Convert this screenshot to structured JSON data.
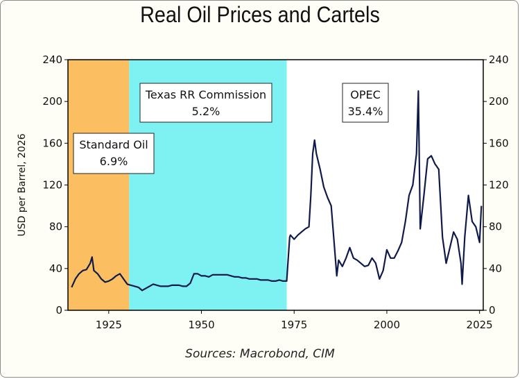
{
  "chart_data": {
    "type": "line",
    "title": "Real Oil Prices and Cartels",
    "ylabel": "USD per Barrel, 2026",
    "source": "Sources: Macrobond, CIM",
    "xlim": [
      1914,
      2026
    ],
    "ylim": [
      0,
      240
    ],
    "x_ticks": [
      "1925",
      "1950",
      "1975",
      "2000",
      "2025"
    ],
    "x_tick_values": [
      1925,
      1950,
      1975,
      2000,
      2025
    ],
    "y_ticks_left": [
      "0",
      "40",
      "80",
      "120",
      "160",
      "200",
      "240"
    ],
    "y_ticks_right": [
      "0",
      "40",
      "80",
      "120",
      "160",
      "200",
      "240"
    ],
    "y_tick_values": [
      0,
      40,
      80,
      120,
      160,
      200,
      240
    ],
    "shaded_periods": [
      {
        "from": 1914,
        "to": 1930.5,
        "color": "#fbbf62"
      },
      {
        "from": 1930.5,
        "to": 1973,
        "color": "#7ef1f3"
      }
    ],
    "annotations": [
      {
        "line1": "Standard Oil",
        "line2": "6.9%"
      },
      {
        "line1": "Texas RR Commission",
        "line2": "5.2%"
      },
      {
        "line1": "OPEC",
        "line2": "35.4%"
      }
    ],
    "series": [
      {
        "color": "#0f1a4a",
        "points": [
          [
            1915,
            22
          ],
          [
            1916,
            30
          ],
          [
            1917,
            35
          ],
          [
            1918,
            38
          ],
          [
            1919,
            39
          ],
          [
            1920,
            45
          ],
          [
            1920.5,
            51
          ],
          [
            1921,
            38
          ],
          [
            1922,
            35
          ],
          [
            1923,
            30
          ],
          [
            1924,
            27
          ],
          [
            1925,
            28
          ],
          [
            1926,
            30
          ],
          [
            1927,
            33
          ],
          [
            1928,
            35
          ],
          [
            1929,
            30
          ],
          [
            1930,
            25
          ],
          [
            1931,
            24
          ],
          [
            1932,
            23
          ],
          [
            1933,
            22
          ],
          [
            1934,
            19
          ],
          [
            1935,
            21
          ],
          [
            1936,
            23
          ],
          [
            1937,
            25
          ],
          [
            1938,
            24
          ],
          [
            1939,
            23
          ],
          [
            1940,
            23
          ],
          [
            1941,
            23
          ],
          [
            1942,
            24
          ],
          [
            1943,
            24
          ],
          [
            1944,
            24
          ],
          [
            1945,
            23
          ],
          [
            1946,
            23
          ],
          [
            1947,
            26
          ],
          [
            1948,
            35
          ],
          [
            1949,
            35
          ],
          [
            1950,
            33
          ],
          [
            1951,
            33
          ],
          [
            1952,
            32
          ],
          [
            1953,
            34
          ],
          [
            1954,
            34
          ],
          [
            1955,
            34
          ],
          [
            1956,
            34
          ],
          [
            1957,
            34
          ],
          [
            1958,
            33
          ],
          [
            1959,
            32
          ],
          [
            1960,
            32
          ],
          [
            1961,
            31
          ],
          [
            1962,
            31
          ],
          [
            1963,
            30
          ],
          [
            1964,
            30
          ],
          [
            1965,
            30
          ],
          [
            1966,
            29
          ],
          [
            1967,
            29
          ],
          [
            1968,
            29
          ],
          [
            1969,
            28
          ],
          [
            1970,
            28
          ],
          [
            1971,
            29
          ],
          [
            1972,
            28
          ],
          [
            1973,
            28
          ],
          [
            1973.8,
            70
          ],
          [
            1974,
            72
          ],
          [
            1975,
            68
          ],
          [
            1976,
            72
          ],
          [
            1977,
            75
          ],
          [
            1978,
            78
          ],
          [
            1979,
            80
          ],
          [
            1979.5,
            110
          ],
          [
            1980,
            150
          ],
          [
            1980.5,
            163
          ],
          [
            1981,
            150
          ],
          [
            1982,
            135
          ],
          [
            1983,
            118
          ],
          [
            1984,
            108
          ],
          [
            1985,
            100
          ],
          [
            1986,
            55
          ],
          [
            1986.5,
            33
          ],
          [
            1987,
            48
          ],
          [
            1988,
            42
          ],
          [
            1989,
            50
          ],
          [
            1990,
            60
          ],
          [
            1991,
            50
          ],
          [
            1992,
            48
          ],
          [
            1993,
            45
          ],
          [
            1994,
            42
          ],
          [
            1995,
            43
          ],
          [
            1996,
            50
          ],
          [
            1997,
            45
          ],
          [
            1998,
            30
          ],
          [
            1999,
            38
          ],
          [
            2000,
            58
          ],
          [
            2001,
            50
          ],
          [
            2002,
            50
          ],
          [
            2003,
            57
          ],
          [
            2004,
            65
          ],
          [
            2005,
            85
          ],
          [
            2006,
            110
          ],
          [
            2007,
            120
          ],
          [
            2008,
            150
          ],
          [
            2008.5,
            210
          ],
          [
            2009,
            78
          ],
          [
            2010,
            110
          ],
          [
            2011,
            145
          ],
          [
            2012,
            148
          ],
          [
            2013,
            140
          ],
          [
            2014,
            135
          ],
          [
            2015,
            70
          ],
          [
            2016,
            45
          ],
          [
            2017,
            60
          ],
          [
            2018,
            75
          ],
          [
            2019,
            68
          ],
          [
            2020,
            45
          ],
          [
            2020.3,
            25
          ],
          [
            2021,
            70
          ],
          [
            2022,
            110
          ],
          [
            2023,
            85
          ],
          [
            2024,
            80
          ],
          [
            2025,
            65
          ],
          [
            2025.5,
            100
          ]
        ]
      }
    ]
  }
}
